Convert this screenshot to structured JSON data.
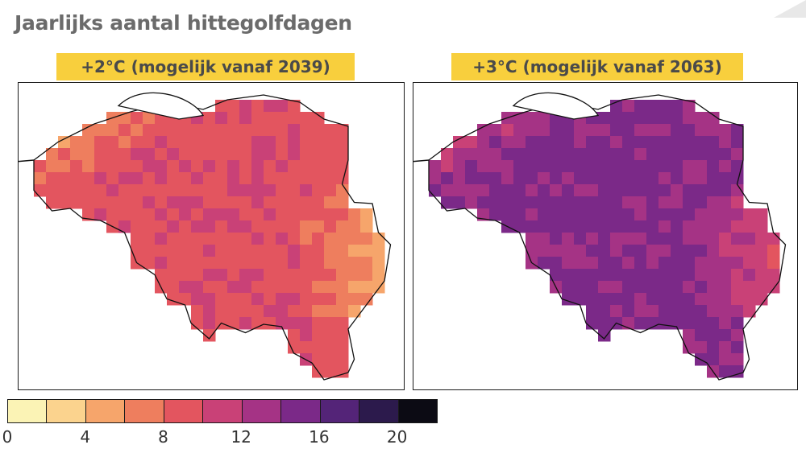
{
  "title": "Jaarlijks aantal hittegolfdagen",
  "panels": [
    {
      "label": "+2°C (mogelijk vanaf 2039)",
      "scenario": "plus2"
    },
    {
      "label": "+3°C (mogelijk vanaf 2063)",
      "scenario": "plus3"
    }
  ],
  "legend": {
    "ticks": [
      "0",
      "4",
      "8",
      "12",
      "16",
      "20"
    ],
    "bins": [
      {
        "range": [
          0,
          2
        ],
        "color": "#fbf3b5"
      },
      {
        "range": [
          2,
          4
        ],
        "color": "#fbd38e"
      },
      {
        "range": [
          4,
          6
        ],
        "color": "#f6a56b"
      },
      {
        "range": [
          6,
          8
        ],
        "color": "#ee7e5e"
      },
      {
        "range": [
          8,
          10
        ],
        "color": "#e3555f"
      },
      {
        "range": [
          10,
          12
        ],
        "color": "#c94177"
      },
      {
        "range": [
          12,
          14
        ],
        "color": "#a53385"
      },
      {
        "range": [
          14,
          16
        ],
        "color": "#7b2988"
      },
      {
        "range": [
          16,
          18
        ],
        "color": "#542478"
      },
      {
        "range": [
          18,
          20
        ],
        "color": "#2c1a4c"
      },
      {
        "range": [
          20,
          22
        ],
        "color": "#0c0b14"
      }
    ]
  },
  "accent_color": "#f8cf3d",
  "title_color": "#6b6b6b"
}
